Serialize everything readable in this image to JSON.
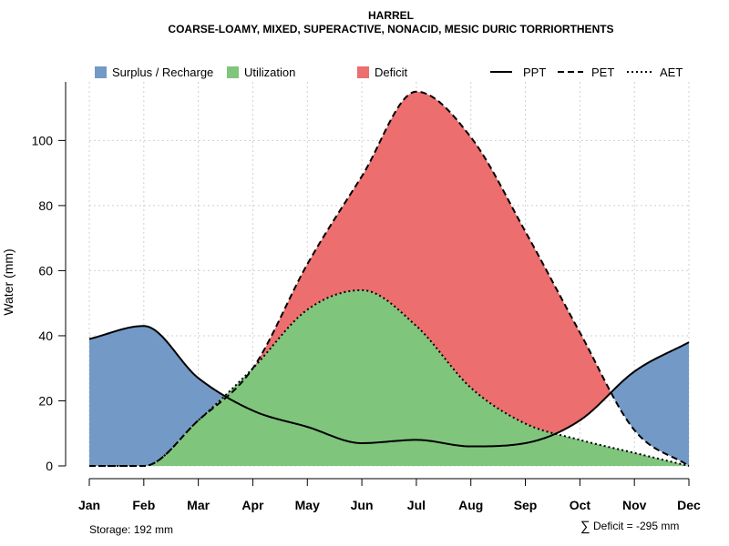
{
  "chart_data": {
    "type": "area",
    "title": "HARREL",
    "subtitle": "COARSE-LOAMY, MIXED, SUPERACTIVE, NONACID, MESIC DURIC TORRIORTHENTS",
    "xlabel": "",
    "ylabel": "Water (mm)",
    "categories": [
      "Jan",
      "Feb",
      "Mar",
      "Apr",
      "May",
      "Jun",
      "Jul",
      "Aug",
      "Sep",
      "Oct",
      "Nov",
      "Dec"
    ],
    "ylim": [
      0,
      118
    ],
    "yticks": [
      0,
      20,
      40,
      60,
      80,
      100
    ],
    "grid": true,
    "legend_position": "top",
    "series": [
      {
        "name": "PPT",
        "style": "solid",
        "values": [
          39,
          43,
          27,
          17,
          12,
          7,
          8,
          6,
          7,
          14,
          29,
          38
        ]
      },
      {
        "name": "PET",
        "style": "dashed",
        "values": [
          0,
          0,
          14,
          30,
          62,
          89,
          115,
          101,
          72,
          41,
          11,
          0
        ]
      },
      {
        "name": "AET",
        "style": "dotted",
        "values": [
          0,
          0,
          14,
          30,
          48,
          54,
          43,
          24,
          13,
          8,
          4,
          0
        ]
      }
    ],
    "fill_legend": [
      {
        "name": "Surplus / Recharge",
        "color": "#7399C6"
      },
      {
        "name": "Utilization",
        "color": "#7FC57C"
      },
      {
        "name": "Deficit",
        "color": "#EC6E6E"
      }
    ],
    "line_legend": [
      "PPT",
      "PET",
      "AET"
    ],
    "annotations": {
      "storage": "Storage: 192 mm",
      "deficit_symbol": "∑",
      "deficit": "Deficit = -295 mm"
    }
  }
}
